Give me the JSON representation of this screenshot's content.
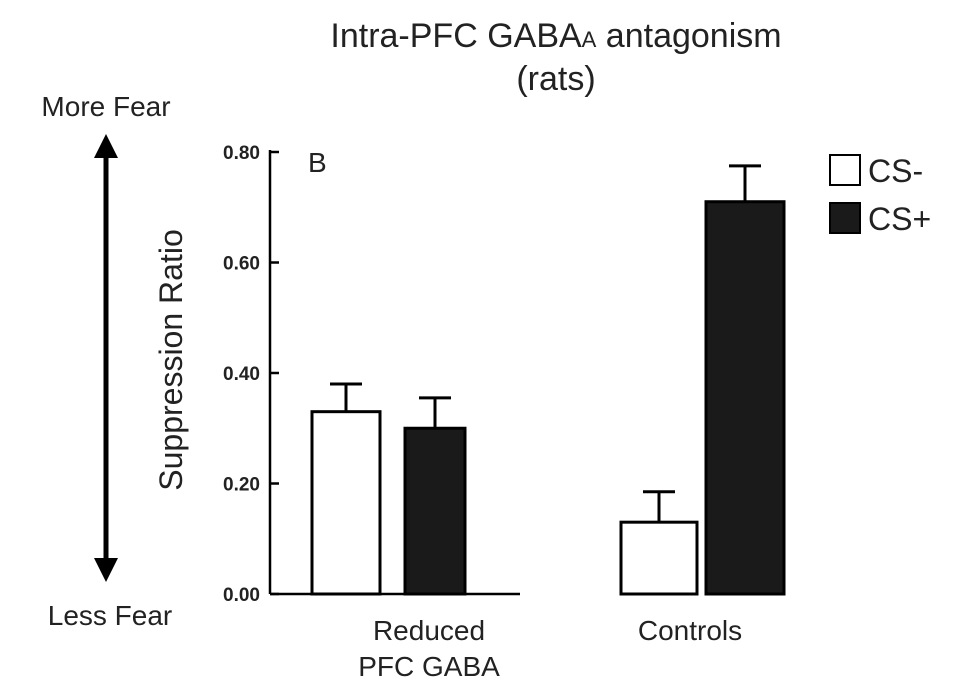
{
  "chart_data": {
    "type": "bar",
    "title_line1": "Intra-PFC GABA",
    "title_sub": "A",
    "title_line1_rest": " antagonism",
    "title_line2": "(rats)",
    "panel_label": "B",
    "ylabel": "Suppression Ratio",
    "ylim": [
      0,
      0.8
    ],
    "yticks": [
      "0.00",
      "0.20",
      "0.40",
      "0.60",
      "0.80"
    ],
    "categories": [
      {
        "line1": "Reduced",
        "line2": "PFC GABA"
      },
      {
        "line1": "Controls",
        "line2": ""
      }
    ],
    "series": [
      {
        "name": "CS-",
        "fill": "#ffffff",
        "values": [
          0.33,
          0.13
        ],
        "errors": [
          0.05,
          0.055
        ]
      },
      {
        "name": "CS+",
        "fill": "#1a1a1a",
        "values": [
          0.3,
          0.71
        ],
        "errors": [
          0.055,
          0.065
        ]
      }
    ],
    "legend_position": "top-right",
    "fear_axis": {
      "top_label": "More Fear",
      "bottom_label": "Less Fear"
    }
  }
}
